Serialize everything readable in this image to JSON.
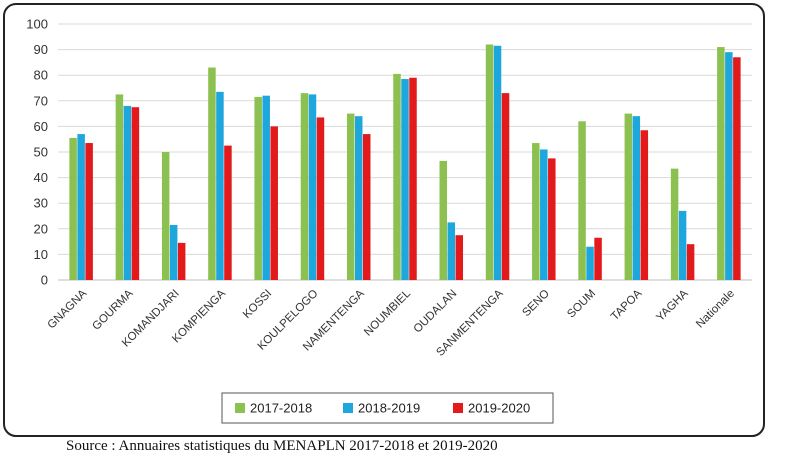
{
  "chart_data": {
    "type": "bar",
    "title": "",
    "xlabel": "",
    "ylabel": "",
    "ylim": [
      0,
      100
    ],
    "yticks": [
      0,
      10,
      20,
      30,
      40,
      50,
      60,
      70,
      80,
      90,
      100
    ],
    "grid": true,
    "legend_position": "bottom",
    "categories": [
      "GNAGNA",
      "GOURMA",
      "KOMANDJARI",
      "KOMPIENGA",
      "KOSSI",
      "KOULPELOGO",
      "NAMENTENGA",
      "NOUMBIEL",
      "OUDALAN",
      "SANMENTENGA",
      "SENO",
      "SOUM",
      "TAPOA",
      "YAGHA",
      "Nationale"
    ],
    "series": [
      {
        "name": "2017-2018",
        "color": "#8cc152",
        "values": [
          55.5,
          72.5,
          50,
          83,
          71.5,
          73,
          65,
          80.5,
          46.5,
          92,
          53.5,
          62,
          65,
          43.5,
          91
        ]
      },
      {
        "name": "2018-2019",
        "color": "#1ea7dd",
        "values": [
          57,
          68,
          21.5,
          73.5,
          72,
          72.5,
          64,
          78.5,
          22.5,
          91.5,
          51,
          13,
          64,
          27,
          89
        ]
      },
      {
        "name": "2019-2020",
        "color": "#e31a1c",
        "values": [
          53.5,
          67.5,
          14.5,
          52.5,
          60,
          63.5,
          57,
          79,
          17.5,
          73,
          47.5,
          16.5,
          58.5,
          14,
          87
        ]
      }
    ]
  },
  "source_note": "Source : Annuaires statistiques du MENAPLN 2017-2018 et 2019-2020"
}
